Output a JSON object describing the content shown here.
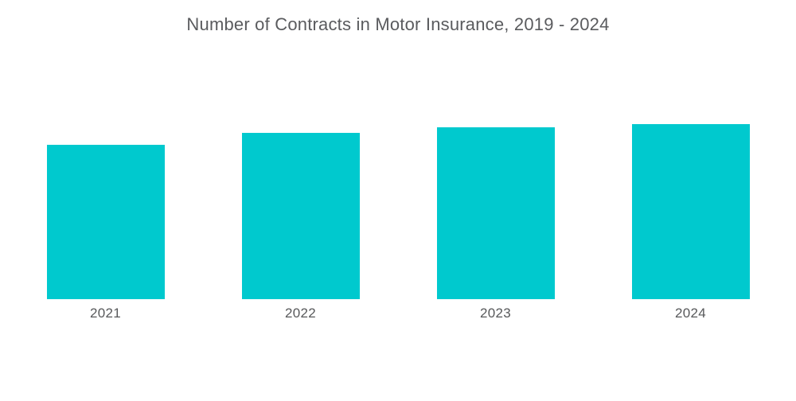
{
  "chart_data": {
    "type": "bar",
    "title": "Number of Contracts in Motor Insurance, 2019 - 2024",
    "categories": [
      "2021",
      "2022",
      "2023",
      "2024"
    ],
    "values": [
      88,
      95,
      98,
      100
    ],
    "value_note": "relative bar heights estimated from pixels; no y-axis, gridlines or data labels shown",
    "ylim": [
      0,
      100
    ],
    "xlabel": "",
    "ylabel": "",
    "grid": false,
    "legend": false,
    "bar_color": "#00c9ce",
    "title_color": "#5a5b5e",
    "axis_label_color": "#57585a",
    "background_color": "#ffffff"
  }
}
